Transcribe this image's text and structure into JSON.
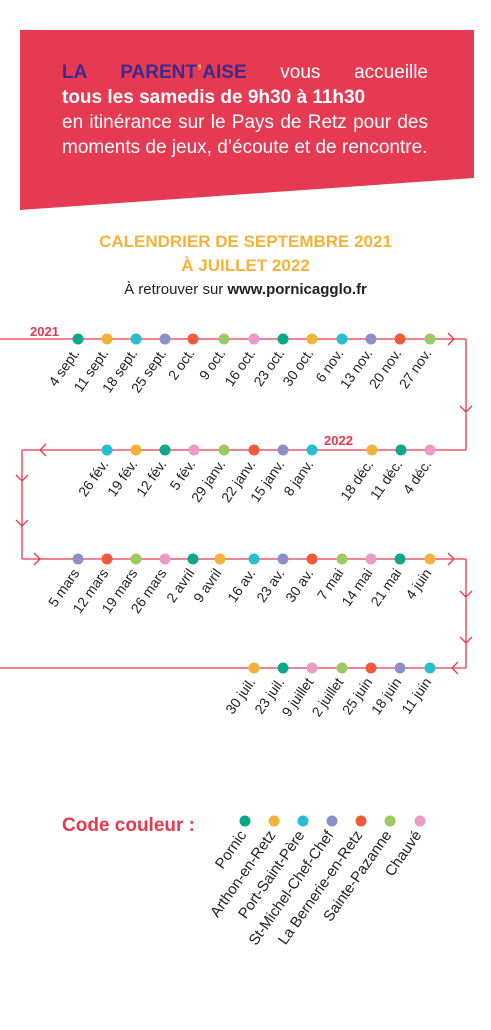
{
  "banner": {
    "org_part1": "LA PARENT",
    "org_apostrophe": "’",
    "org_part2": "AISE",
    "line1_rest": "vous accueille",
    "line2": "tous les samedis de 9h30 à 11h30",
    "line3": "en itinérance sur le Pays de Retz pour des moments de jeux, d’écoute et de rencontre.",
    "color": "#e63a52"
  },
  "calendar": {
    "title_line1": "CALENDRIER DE SEPTEMBRE 2021",
    "title_line2": "À JUILLET 2022",
    "subtitle_prefix": "À retrouver sur ",
    "subtitle_link": "www.pornicagglo.fr",
    "year_2021": "2021",
    "year_2022": "2022",
    "line_color": "#e53950",
    "rows": [
      [
        {
          "date": "4 sept.",
          "loc": "Pornic"
        },
        {
          "date": "11 sept.",
          "loc": "Arthon-en-Retz"
        },
        {
          "date": "18 sept.",
          "loc": "Port-Saint-Père"
        },
        {
          "date": "25 sept.",
          "loc": "St-Michel-Chef-Chef"
        },
        {
          "date": "2 oct.",
          "loc": "La Bernerie-en-Retz"
        },
        {
          "date": "9 oct.",
          "loc": "Sainte-Pazanne"
        },
        {
          "date": "16 oct.",
          "loc": "Chauvé"
        },
        {
          "date": "23 oct.",
          "loc": "Pornic"
        },
        {
          "date": "30 oct.",
          "loc": "Arthon-en-Retz"
        },
        {
          "date": "6 nov.",
          "loc": "Port-Saint-Père"
        },
        {
          "date": "13 nov.",
          "loc": "St-Michel-Chef-Chef"
        },
        {
          "date": "20 nov.",
          "loc": "La Bernerie-en-Retz"
        },
        {
          "date": "27 nov.",
          "loc": "Sainte-Pazanne"
        }
      ],
      [
        {
          "date": "26 fév.",
          "loc": "Port-Saint-Père"
        },
        {
          "date": "19 fév.",
          "loc": "Arthon-en-Retz"
        },
        {
          "date": "12 fév.",
          "loc": "Pornic"
        },
        {
          "date": "5 fév.",
          "loc": "Chauvé"
        },
        {
          "date": "29 janv.",
          "loc": "Sainte-Pazanne"
        },
        {
          "date": "22 janv.",
          "loc": "La Bernerie-en-Retz"
        },
        {
          "date": "15 janv.",
          "loc": "St-Michel-Chef-Chef"
        },
        {
          "date": "8 janv.",
          "loc": "Port-Saint-Père"
        },
        {
          "date": "18 déc.",
          "loc": "Arthon-en-Retz"
        },
        {
          "date": "11 déc.",
          "loc": "Pornic"
        },
        {
          "date": "4 déc.",
          "loc": "Chauvé"
        }
      ],
      [
        {
          "date": "5 mars",
          "loc": "St-Michel-Chef-Chef"
        },
        {
          "date": "12 mars",
          "loc": "La Bernerie-en-Retz"
        },
        {
          "date": "19 mars",
          "loc": "Sainte-Pazanne"
        },
        {
          "date": "26 mars",
          "loc": "Chauvé"
        },
        {
          "date": "2 avril",
          "loc": "Pornic"
        },
        {
          "date": "9 avril",
          "loc": "Arthon-en-Retz"
        },
        {
          "date": "16 av.",
          "loc": "Port-Saint-Père"
        },
        {
          "date": "23 av.",
          "loc": "St-Michel-Chef-Chef"
        },
        {
          "date": "30 av.",
          "loc": "La Bernerie-en-Retz"
        },
        {
          "date": "7 mai",
          "loc": "Sainte-Pazanne"
        },
        {
          "date": "14 mai",
          "loc": "Chauvé"
        },
        {
          "date": "21 mai",
          "loc": "Pornic"
        },
        {
          "date": "4 juin",
          "loc": "Arthon-en-Retz"
        }
      ],
      [
        {
          "date": "30 juil.",
          "loc": "Arthon-en-Retz"
        },
        {
          "date": "23 juil.",
          "loc": "Pornic"
        },
        {
          "date": "9 juillet",
          "loc": "Chauvé"
        },
        {
          "date": "2 juillet",
          "loc": "Sainte-Pazanne"
        },
        {
          "date": "25 juin",
          "loc": "La Bernerie-en-Retz"
        },
        {
          "date": "18 juin",
          "loc": "St-Michel-Chef-Chef"
        },
        {
          "date": "11 juin",
          "loc": "Port-Saint-Père"
        }
      ]
    ]
  },
  "legend": {
    "title": "Code couleur :",
    "items": [
      {
        "name": "Pornic",
        "color": "#0aa88a"
      },
      {
        "name": "Arthon-en-Retz",
        "color": "#f3b339"
      },
      {
        "name": "Port-Saint-Père",
        "color": "#27bfcf"
      },
      {
        "name": "St-Michel-Chef-Chef",
        "color": "#8b91c7"
      },
      {
        "name": "La Bernerie-en-Retz",
        "color": "#ef5a3c"
      },
      {
        "name": "Sainte-Pazanne",
        "color": "#9bc964"
      },
      {
        "name": "Chauvé",
        "color": "#ea9bc6"
      }
    ]
  }
}
